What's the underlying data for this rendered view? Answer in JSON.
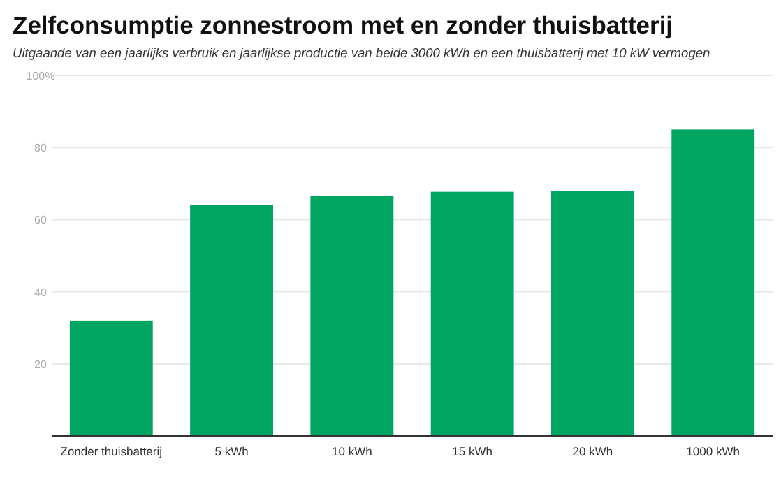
{
  "chart_data": {
    "type": "bar",
    "title": "Zelfconsumptie zonnestroom met en zonder thuisbatterij",
    "subtitle": "Uitgaande van een jaarlijks verbruik en jaarlijkse productie van beide 3000 kWh en een thuisbatterij met 10 kW vermogen",
    "categories": [
      "Zonder thuisbatterij",
      "5 kWh",
      "10 kWh",
      "15 kWh",
      "20 kWh",
      "1000 kWh"
    ],
    "values": [
      32,
      64,
      66.6,
      67.7,
      68,
      85
    ],
    "color": "#00a562",
    "ylim": [
      0,
      100
    ],
    "yticks": [
      {
        "value": 0,
        "label": null
      },
      20,
      40,
      60,
      80,
      {
        "value": 100,
        "label": "100%"
      }
    ],
    "grid": "y"
  }
}
